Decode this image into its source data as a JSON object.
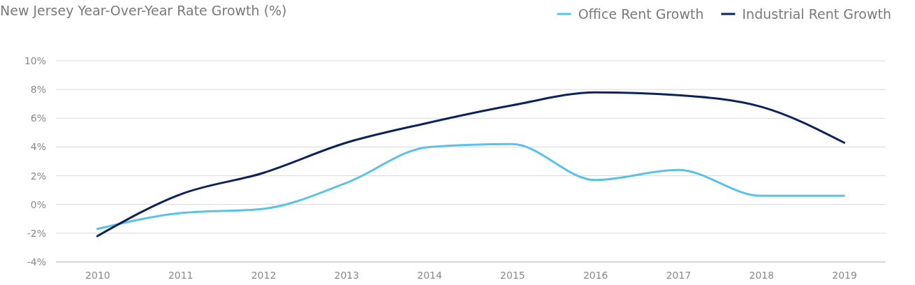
{
  "chart_data": {
    "type": "line",
    "title": "New Jersey Year-Over-Year Rate Growth (%)",
    "categories": [
      "2010",
      "2011",
      "2012",
      "2013",
      "2014",
      "2015",
      "2016",
      "2017",
      "2018",
      "2019"
    ],
    "series": [
      {
        "name": "Office Rent Growth",
        "color": "#5bc2e7",
        "values": [
          -1.7,
          -0.6,
          -0.3,
          1.5,
          4.0,
          4.2,
          1.7,
          2.4,
          0.6,
          0.6
        ]
      },
      {
        "name": "Industrial Rent Growth",
        "color": "#0b2359",
        "values": [
          -2.2,
          0.7,
          2.2,
          4.3,
          5.7,
          6.9,
          7.8,
          7.6,
          6.8,
          4.3
        ]
      }
    ],
    "ylim": [
      -4,
      10
    ],
    "yticks": [
      {
        "value": -4,
        "label": "-4%"
      },
      {
        "value": -2,
        "label": "-2%"
      },
      {
        "value": 0,
        "label": "0%"
      },
      {
        "value": 2,
        "label": "2%"
      },
      {
        "value": 4,
        "label": "4%"
      },
      {
        "value": 6,
        "label": "6%"
      },
      {
        "value": 8,
        "label": "8%"
      },
      {
        "value": 10,
        "label": "10%"
      }
    ],
    "grid": "y",
    "legend": "top right",
    "marker": "none",
    "line_style": "solid"
  }
}
